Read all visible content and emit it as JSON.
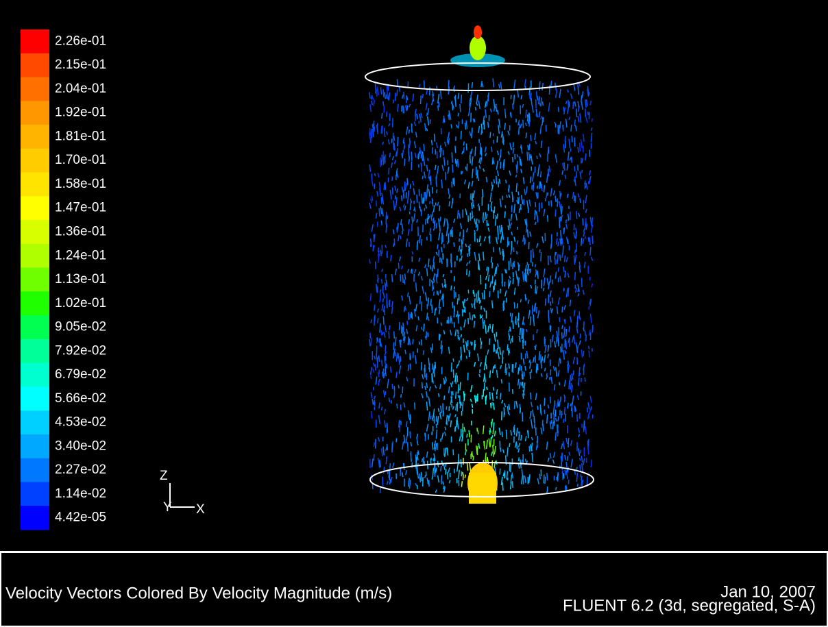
{
  "colormap": {
    "labels": [
      "2.26e-01",
      "2.15e-01",
      "2.04e-01",
      "1.92e-01",
      "1.81e-01",
      "1.70e-01",
      "1.58e-01",
      "1.47e-01",
      "1.36e-01",
      "1.24e-01",
      "1.13e-01",
      "1.02e-01",
      "9.05e-02",
      "7.92e-02",
      "6.79e-02",
      "5.66e-02",
      "4.53e-02",
      "3.40e-02",
      "2.27e-02",
      "1.14e-02",
      "4.42e-05"
    ],
    "colors": [
      "#ff0000",
      "#ff4a00",
      "#ff7000",
      "#ff9800",
      "#ffb400",
      "#ffcc00",
      "#ffe400",
      "#ffff00",
      "#d8ff00",
      "#b0ff00",
      "#70ff00",
      "#20ff00",
      "#00ff50",
      "#00ff98",
      "#00ffd0",
      "#00ffff",
      "#00d0ff",
      "#00a8ff",
      "#0078ff",
      "#0040ff",
      "#0000ff"
    ]
  },
  "axes": {
    "z": "Z",
    "y": "Y",
    "x": "X"
  },
  "footer": {
    "title": "Velocity Vectors Colored By Velocity Magnitude (m/s)",
    "date": "Jan 10, 2007",
    "software": "FLUENT 6.2 (3d, segregated, S-A)"
  }
}
